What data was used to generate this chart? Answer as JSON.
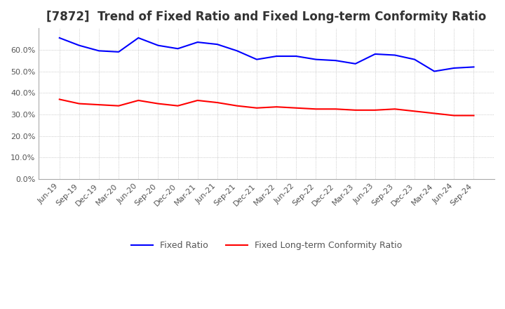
{
  "title": "[7872]  Trend of Fixed Ratio and Fixed Long-term Conformity Ratio",
  "x_labels": [
    "Jun-19",
    "Sep-19",
    "Dec-19",
    "Mar-20",
    "Jun-20",
    "Sep-20",
    "Dec-20",
    "Mar-21",
    "Jun-21",
    "Sep-21",
    "Dec-21",
    "Mar-22",
    "Jun-22",
    "Sep-22",
    "Dec-22",
    "Mar-23",
    "Jun-23",
    "Sep-23",
    "Dec-23",
    "Mar-24",
    "Jun-24",
    "Sep-24"
  ],
  "fixed_ratio": [
    65.5,
    62.0,
    59.5,
    59.0,
    65.5,
    62.0,
    60.5,
    63.5,
    62.5,
    59.5,
    55.5,
    57.0,
    57.0,
    55.5,
    55.0,
    53.5,
    58.0,
    57.5,
    55.5,
    50.0,
    51.5,
    52.0
  ],
  "fixed_lt_ratio": [
    37.0,
    35.0,
    34.5,
    34.0,
    36.5,
    35.0,
    34.0,
    36.5,
    35.5,
    34.0,
    33.0,
    33.5,
    33.0,
    32.5,
    32.5,
    32.0,
    32.0,
    32.5,
    31.5,
    30.5,
    29.5,
    29.5
  ],
  "fixed_ratio_color": "#0000ff",
  "fixed_lt_ratio_color": "#ff0000",
  "ylim": [
    0,
    70
  ],
  "yticks": [
    0,
    10,
    20,
    30,
    40,
    50,
    60
  ],
  "ytick_labels": [
    "0.0%",
    "10.0%",
    "20.0%",
    "30.0%",
    "40.0%",
    "50.0%",
    "60.0%"
  ],
  "bg_color": "#ffffff",
  "grid_color": "#aaaaaa",
  "legend_fixed_ratio": "Fixed Ratio",
  "legend_fixed_lt_ratio": "Fixed Long-term Conformity Ratio",
  "title_fontsize": 12,
  "tick_fontsize": 8,
  "legend_fontsize": 9
}
